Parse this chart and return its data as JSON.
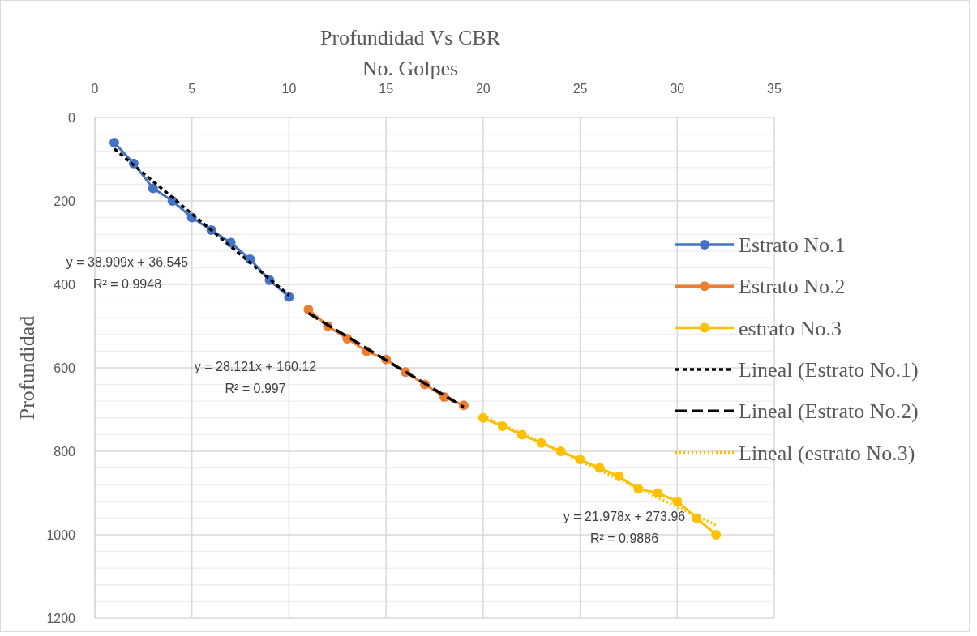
{
  "chart_data": {
    "type": "line",
    "title": "Profundidad Vs CBR",
    "xlabel": "No. Golpes",
    "ylabel": "Profundidad",
    "xlim": [
      0,
      35
    ],
    "xticks": [
      0,
      5,
      10,
      15,
      20,
      25,
      30,
      35
    ],
    "ylim": [
      1200,
      0
    ],
    "yticks": [
      0,
      {
        "value": 40,
        "label": null
      },
      {
        "value": 80,
        "label": null
      },
      {
        "value": 120,
        "label": null
      },
      {
        "value": 160,
        "label": null
      },
      200,
      {
        "value": 240,
        "label": null
      },
      {
        "value": 280,
        "label": null
      },
      {
        "value": 320,
        "label": null
      },
      {
        "value": 360,
        "label": null
      },
      400,
      {
        "value": 440,
        "label": null
      },
      {
        "value": 480,
        "label": null
      },
      {
        "value": 520,
        "label": null
      },
      {
        "value": 560,
        "label": null
      },
      600,
      {
        "value": 640,
        "label": null
      },
      {
        "value": 680,
        "label": null
      },
      {
        "value": 720,
        "label": null
      },
      {
        "value": 760,
        "label": null
      },
      800,
      {
        "value": 840,
        "label": null
      },
      {
        "value": 880,
        "label": null
      },
      {
        "value": 920,
        "label": null
      },
      {
        "value": 960,
        "label": null
      },
      1000,
      {
        "value": 1040,
        "label": null
      },
      {
        "value": 1080,
        "label": null
      },
      {
        "value": 1120,
        "label": null
      },
      {
        "value": 1160,
        "label": null
      },
      1200
    ],
    "grid": true,
    "legend": "right",
    "marker": "circle",
    "series": [
      {
        "name": "Estrato No.1",
        "color": "#4472c4",
        "x": [
          1,
          2,
          3,
          4,
          5,
          6,
          7,
          8,
          9,
          10
        ],
        "values": [
          60,
          110,
          170,
          200,
          240,
          270,
          300,
          340,
          390,
          430
        ]
      },
      {
        "name": "Estrato No.2",
        "color": "#ed7d31",
        "x": [
          11,
          12,
          13,
          14,
          15,
          16,
          17,
          18,
          19
        ],
        "values": [
          460,
          500,
          530,
          560,
          580,
          610,
          640,
          670,
          690
        ]
      },
      {
        "name": "estrato No.3",
        "color": "#ffc000",
        "x": [
          20,
          21,
          22,
          23,
          24,
          25,
          26,
          27,
          28,
          29,
          30,
          31,
          32
        ],
        "values": [
          720,
          740,
          760,
          780,
          800,
          820,
          840,
          860,
          890,
          900,
          920,
          960,
          1000
        ]
      },
      {
        "name": "Lineal (Estrato No.1)",
        "color": "#000000",
        "x": [
          1,
          10
        ],
        "values": [
          75,
          426
        ],
        "marker": "none",
        "line_style": "dashed"
      },
      {
        "name": "Lineal (Estrato No.2)",
        "color": "#000000",
        "x": [
          11,
          19
        ],
        "values": [
          469,
          694
        ],
        "marker": "none",
        "line_style": "longdash"
      },
      {
        "name": "Lineal (estrato No.3)",
        "color": "#ffc000",
        "x": [
          20,
          32
        ],
        "values": [
          714,
          977
        ],
        "marker": "none",
        "line_style": "dotted"
      }
    ],
    "annotations": [
      "y = 38.909x + 36.545\nR² = 0.9948",
      "y = 28.121x + 160.12\nR² = 0.997",
      "y = 21.978x + 273.96\nR² = 0.9886"
    ]
  }
}
